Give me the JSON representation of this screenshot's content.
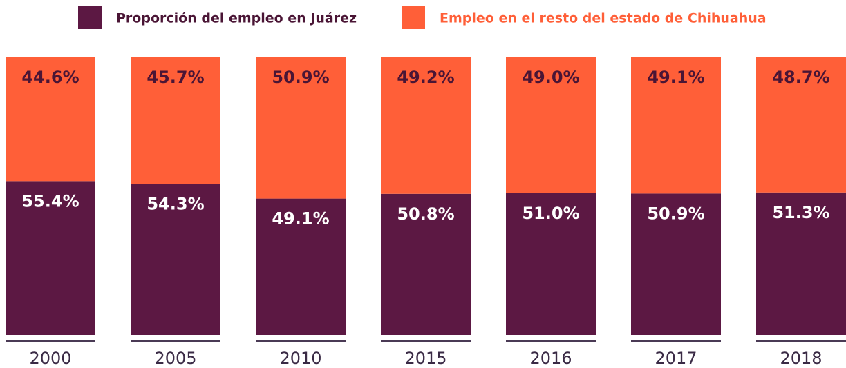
{
  "chart_data": {
    "type": "stacked_bar",
    "categories": [
      "2000",
      "2005",
      "2010",
      "2015",
      "2016",
      "2017",
      "2018"
    ],
    "series": [
      {
        "name": "Proporción del empleo en Juárez",
        "color": "#5c1843",
        "values": [
          55.4,
          54.3,
          49.1,
          50.8,
          51.0,
          50.9,
          51.3
        ],
        "value_labels": [
          "55.4%",
          "54.3%",
          "49.1%",
          "50.8%",
          "51.0%",
          "50.9%",
          "51.3%"
        ]
      },
      {
        "name": "Empleo en el resto del estado de Chihuahua",
        "color": "#ff5f38",
        "values": [
          44.6,
          45.7,
          50.9,
          49.2,
          49.0,
          49.1,
          48.7
        ],
        "value_labels": [
          "44.6%",
          "45.7%",
          "50.9%",
          "49.2%",
          "49.0%",
          "49.1%",
          "48.7%"
        ]
      }
    ],
    "ylim": [
      0,
      100
    ]
  }
}
